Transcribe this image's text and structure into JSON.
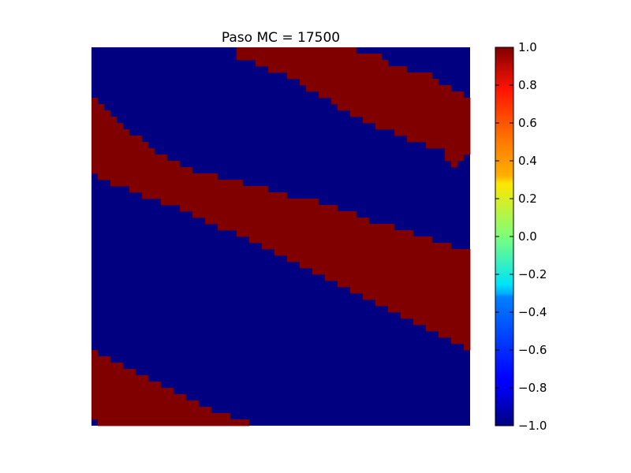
{
  "chart_data": {
    "type": "heatmap",
    "title": "Paso MC = 17500",
    "xlabel": "",
    "ylabel": "",
    "colormap": "jet",
    "value_range": [
      -1.0,
      1.0
    ],
    "lattice_values": [
      -1,
      1
    ],
    "colors": {
      "spin_up": "#800000",
      "spin_down": "#000080"
    },
    "grid_size": 60,
    "grid_rows": [
      "-----------------------+++++++++++++++++++------------------",
      "-----------------------+++++++++++++++++++++++--------------",
      "--------------------------+++++++++++++++++++++-------------",
      "----------------------------++++++++++++++++++++++----------",
      "-------------------------------+++++++++++++++++++++++------",
      "---------------------------------++++++++++++++++++++++-----",
      "----------------------------------+++++++++++++++++++++++---",
      "------------------------------------+++++++++++++++++++++++-",
      "+-------------------------------------++++++++++++++++++++++",
      "++-------------------------------------+++++++++++++++++++++",
      "+++--------------------------------------+++++++++++++++++++",
      "++++---------------------------------------+++++++++++++++++",
      "+++++----------------------------------------+++++++++++++++",
      "++++++------------------------------------------++++++++++++",
      "++++++++------------------------------------------++++++++++",
      "+++++++++--------------------------------------------+++++++",
      "++++++++++----------------------------------------------++++",
      "++++++++++++--------------------------------------------+++-",
      "++++++++++++++-------------------------------------------+--",
      "++++++++++++++++--------------------------------------------",
      "-+++++++++++++++++++----------------------------------------",
      "---+++++++++++++++++++++------------------------------------",
      "------++++++++++++++++++++++--------------------------------",
      "--------+++++++++++++++++++++++-----------------------------",
      "-----------+++++++++++++++++++++++++------------------------",
      "--------------+++++++++++++++++++++++++---------------------",
      "----------------++++++++++++++++++++++++++------------------",
      "------------------++++++++++++++++++++++++++----------------",
      "--------------------++++++++++++++++++++++++++++------------",
      "-----------------------++++++++++++++++++++++++++++---------",
      "-------------------------+++++++++++++++++++++++++++++------",
      "---------------------------++++++++++++++++++++++++++++++---",
      "-----------------------------+++++++++++++++++++++++++++++++",
      "-------------------------------+++++++++++++++++++++++++++++",
      "---------------------------------+++++++++++++++++++++++++++",
      "-----------------------------------+++++++++++++++++++++++++",
      "-------------------------------------+++++++++++++++++++++++",
      "---------------------------------------+++++++++++++++++++++",
      "-----------------------------------------+++++++++++++++++++",
      "-------------------------------------------+++++++++++++++++",
      "---------------------------------------------+++++++++++++++",
      "-----------------------------------------------+++++++++++++",
      "-------------------------------------------------+++++++++++",
      "---------------------------------------------------+++++++++",
      "-----------------------------------------------------+++++++",
      "-------------------------------------------------------+++++",
      "---------------------------------------------------------+++",
      "-----------------------------------------------------------+",
      "+-----------------------------------------------------------",
      "+++---------------------------------------------------------",
      "+++++-------------------------------------------------------",
      "+++++++-----------------------------------------------------",
      "+++++++++---------------------------------------------------",
      "+++++++++++-------------------------------------------------",
      "+++++++++++++-----------------------------------------------",
      "+++++++++++++++---------------------------------------------",
      "+++++++++++++++++-------------------------------------------",
      "+++++++++++++++++++-----------------------------------------",
      "++++++++++++++++++++++--------------------------------------",
      "-++++++++++++++++++++++++-----------------------------------"
    ],
    "colorbar": {
      "ticks": [
        -1.0,
        -0.8,
        -0.6,
        -0.4,
        -0.2,
        0.0,
        0.2,
        0.4,
        0.6,
        0.8,
        1.0
      ],
      "tick_labels": [
        "−1.0",
        "−0.8",
        "−0.6",
        "−0.4",
        "−0.2",
        "0.0",
        "0.2",
        "0.4",
        "0.6",
        "0.8",
        "1.0"
      ],
      "placement": "right"
    },
    "axes_visible": false,
    "grid": false
  }
}
